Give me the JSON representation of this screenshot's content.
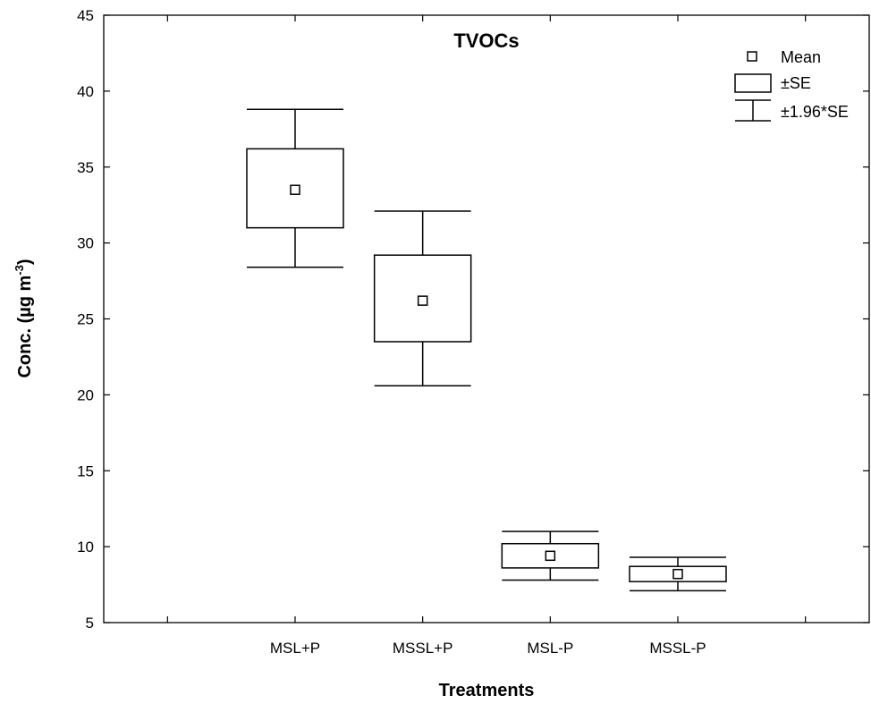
{
  "chart_data": {
    "type": "box",
    "title": "TVOCs",
    "xlabel": "Treatments",
    "ylabel": "Conc. (µg m",
    "ylabel_superscript": "-3",
    "ylabel_suffix": ")",
    "ylim": [
      5,
      45
    ],
    "yticks": [
      5,
      10,
      15,
      20,
      25,
      30,
      35,
      40,
      45
    ],
    "categories": [
      "MSL+P",
      "MSSL+P",
      "MSL-P",
      "MSSL-P"
    ],
    "series": [
      {
        "category": "MSL+P",
        "mean": 33.5,
        "se_low": 31.0,
        "se_high": 36.2,
        "ci_low": 28.4,
        "ci_high": 38.8
      },
      {
        "category": "MSSL+P",
        "mean": 26.2,
        "se_low": 23.5,
        "se_high": 29.2,
        "ci_low": 20.6,
        "ci_high": 32.1
      },
      {
        "category": "MSL-P",
        "mean": 9.4,
        "se_low": 8.6,
        "se_high": 10.2,
        "ci_low": 7.8,
        "ci_high": 11.0
      },
      {
        "category": "MSSL-P",
        "mean": 8.2,
        "se_low": 7.7,
        "se_high": 8.7,
        "ci_low": 7.1,
        "ci_high": 9.3
      }
    ],
    "legend": [
      {
        "symbol": "mean-square",
        "label": "Mean"
      },
      {
        "symbol": "se-box",
        "label": "±SE"
      },
      {
        "symbol": "ci-whisker",
        "label": "±1.96*SE"
      }
    ],
    "legend_position": "top-right",
    "grid": false
  }
}
